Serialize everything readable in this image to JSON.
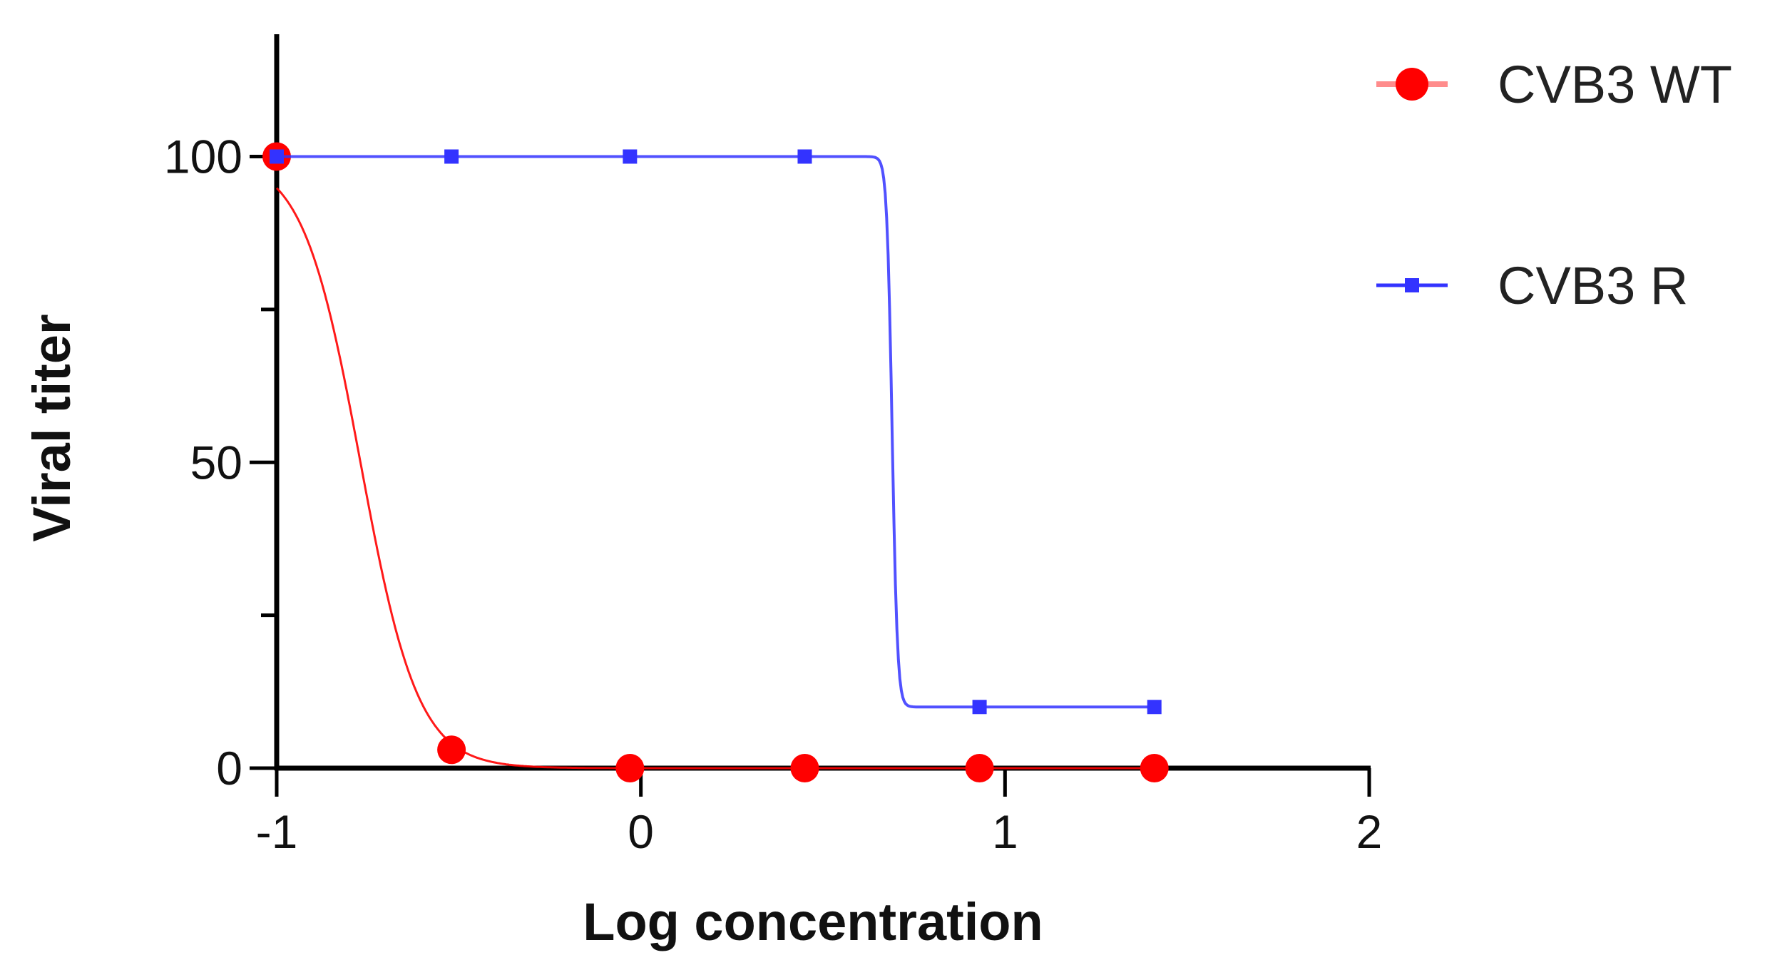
{
  "chart_data": {
    "type": "line",
    "xlabel": "Log concentration",
    "ylabel": "Viral titer",
    "xlim": [
      -1,
      2
    ],
    "ylim": [
      0,
      120
    ],
    "x_ticks": [
      -1,
      0,
      1,
      2
    ],
    "y_ticks": [
      0,
      50,
      100
    ],
    "y_minor_ticks": [
      25,
      75
    ],
    "grid": false,
    "legend_position": "top-right",
    "series": [
      {
        "name": "CVB3 WT",
        "color": "#ff0000",
        "marker": "circle",
        "points": [
          {
            "x": -1.0,
            "y": 100
          },
          {
            "x": -0.52,
            "y": 3
          },
          {
            "x": -0.03,
            "y": 0
          },
          {
            "x": 0.45,
            "y": 0
          },
          {
            "x": 0.93,
            "y": 0
          },
          {
            "x": 1.41,
            "y": 0
          }
        ],
        "fit": {
          "top": 100,
          "bottom": 0,
          "log_ic50": -0.77,
          "hill_slope": -5.5
        }
      },
      {
        "name": "CVB3 R",
        "color": "#3333ff",
        "marker": "square",
        "points": [
          {
            "x": -1.0,
            "y": 100
          },
          {
            "x": -0.52,
            "y": 100
          },
          {
            "x": -0.03,
            "y": 100
          },
          {
            "x": 0.45,
            "y": 100
          },
          {
            "x": 0.93,
            "y": 10
          },
          {
            "x": 1.41,
            "y": 10
          }
        ],
        "fit": {
          "top": 100,
          "bottom": 10,
          "log_ic50": 0.69,
          "hill_slope": -60
        }
      }
    ]
  }
}
